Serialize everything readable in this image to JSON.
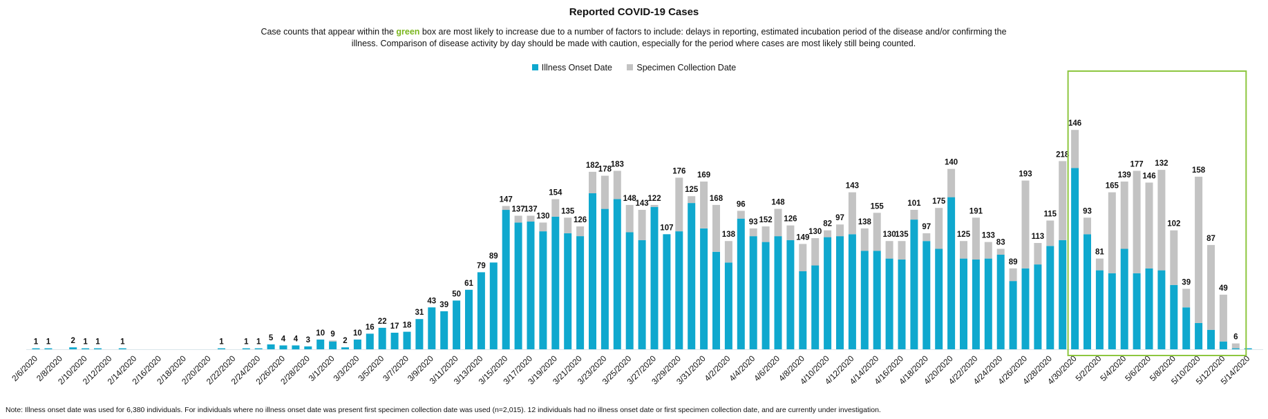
{
  "chart_data": {
    "type": "bar",
    "stacked": true,
    "title": "Reported COVID-19 Cases",
    "subtitle_parts": [
      "Case counts that appear within the ",
      "green",
      " box are most likely to increase due to a number of factors to include: delays in reporting, estimated incubation period of the disease and/or confirming the illness. Comparison of disease activity by day should be made with caution, especially for the period where cases are most likely still being counted."
    ],
    "legend": [
      "Illness Onset Date",
      "Specimen Collection Date"
    ],
    "legend_position": "top-center",
    "colors": {
      "onset": "#0fa8ce",
      "specimen": "#c3c3c3",
      "highlight_box": "#8dc63f"
    },
    "x_tick_labels": [
      "2/6/2020",
      "2/8/2020",
      "2/10/2020",
      "2/12/2020",
      "2/14/2020",
      "2/16/2020",
      "2/18/2020",
      "2/20/2020",
      "2/22/2020",
      "2/24/2020",
      "2/26/2020",
      "2/28/2020",
      "3/1/2020",
      "3/3/2020",
      "3/5/2020",
      "3/7/2020",
      "3/9/2020",
      "3/11/2020",
      "3/13/2020",
      "3/15/2020",
      "3/17/2020",
      "3/19/2020",
      "3/21/2020",
      "3/23/2020",
      "3/25/2020",
      "3/27/2020",
      "3/29/2020",
      "3/31/2020",
      "4/2/2020",
      "4/4/2020",
      "4/6/2020",
      "4/8/2020",
      "4/10/2020",
      "4/12/2020",
      "4/14/2020",
      "4/16/2020",
      "4/18/2020",
      "4/20/2020",
      "4/22/2020",
      "4/24/2020",
      "4/26/2020",
      "4/28/2020",
      "4/30/2020",
      "5/2/2020",
      "5/4/2020",
      "5/6/2020",
      "5/8/2020",
      "5/10/2020",
      "5/12/2020",
      "5/14/2020"
    ],
    "series": [
      {
        "name": "Illness Onset Date",
        "values": [
          1,
          1,
          0,
          2,
          1,
          1,
          0,
          1,
          0,
          0,
          0,
          0,
          0,
          0,
          0,
          1,
          0,
          1,
          1,
          5,
          4,
          4,
          3,
          10,
          8,
          2,
          10,
          16,
          22,
          17,
          18,
          31,
          43,
          39,
          50,
          61,
          79,
          89,
          143,
          130,
          131,
          121,
          136,
          119,
          116,
          160,
          144,
          154,
          120,
          112,
          146,
          118,
          121,
          150,
          124,
          100,
          89,
          134,
          116,
          110,
          116,
          112,
          80,
          86,
          115,
          116,
          118,
          101,
          101,
          93,
          92,
          133,
          111,
          103,
          156,
          93,
          92,
          93,
          97,
          70,
          83,
          87,
          106,
          112,
          186,
          118,
          81,
          78,
          103,
          78,
          83,
          81,
          66,
          43,
          27,
          20,
          8,
          1,
          1
        ],
        "labels": [
          1,
          1,
          null,
          2,
          1,
          1,
          null,
          1,
          null,
          null,
          null,
          null,
          null,
          null,
          null,
          1,
          null,
          1,
          1,
          5,
          4,
          4,
          3,
          10,
          9,
          2,
          10,
          16,
          22,
          17,
          18,
          31,
          43,
          39,
          50,
          61,
          79,
          89,
          147,
          137,
          137,
          130,
          154,
          135,
          126,
          182,
          178,
          183,
          148,
          143,
          122,
          107,
          176,
          125,
          169,
          168,
          138,
          96,
          93,
          152,
          148,
          126,
          149,
          130,
          82,
          97,
          143,
          138,
          155,
          130,
          135,
          101,
          97,
          175,
          140,
          125,
          191,
          133,
          83,
          89,
          193,
          113,
          115,
          218,
          146,
          93,
          81,
          165,
          139,
          177,
          146,
          132,
          102,
          39,
          158,
          87,
          49,
          6,
          null
        ]
      },
      {
        "name": "Specimen Collection Date",
        "values": [
          0,
          0,
          0,
          0,
          0,
          0,
          0,
          0,
          0,
          0,
          0,
          0,
          0,
          0,
          0,
          0,
          0,
          0,
          0,
          0,
          0,
          0,
          0,
          0,
          1,
          0,
          0,
          0,
          0,
          0,
          0,
          0,
          0,
          0,
          0,
          0,
          0,
          0,
          4,
          7,
          6,
          9,
          18,
          16,
          10,
          22,
          34,
          29,
          28,
          31,
          2,
          0,
          55,
          7,
          48,
          48,
          22,
          8,
          8,
          16,
          28,
          15,
          28,
          28,
          7,
          12,
          43,
          23,
          39,
          18,
          19,
          10,
          8,
          42,
          29,
          18,
          43,
          17,
          6,
          13,
          90,
          22,
          26,
          81,
          39,
          17,
          12,
          83,
          69,
          105,
          88,
          103,
          56,
          19,
          150,
          87,
          48,
          5,
          0
        ]
      }
    ],
    "ylim": [
      0,
      240
    ],
    "highlight_box": {
      "from_index": 84,
      "to_index": 97
    },
    "grid": false,
    "footnote": "Note: Illness onset date was used for 6,380 individuals. For individuals where no illness onset date was present first specimen collection date was used (n=2,015). 12 individuals had no illness onset date or first specimen collection date, and are currently under investigation."
  }
}
